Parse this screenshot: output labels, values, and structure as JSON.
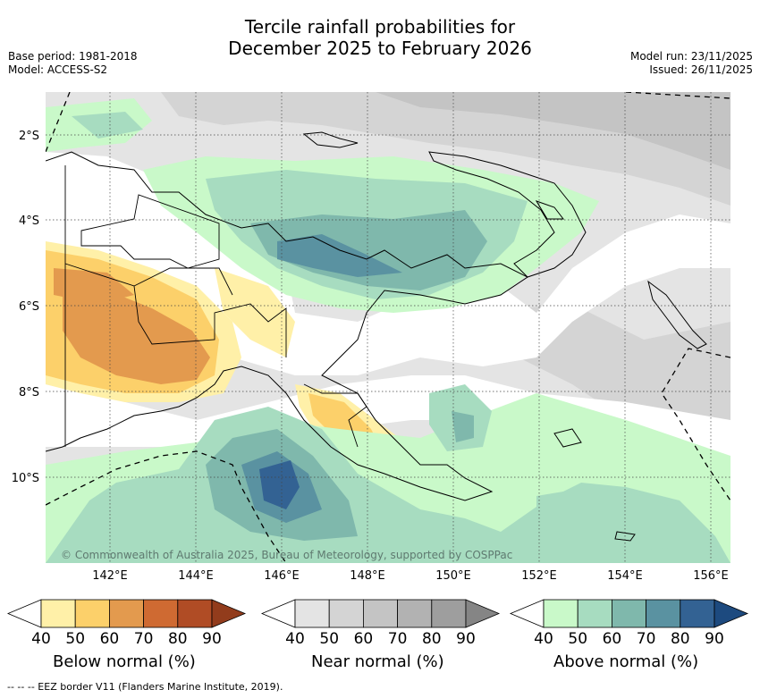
{
  "header": {
    "title_line1": "Tercile rainfall probabilities for",
    "title_line2": "December 2025 to February 2026",
    "base_period": "Base period: 1981-2018",
    "model": "Model: ACCESS-S2",
    "model_run": "Model run: 23/11/2025",
    "issued": "Issued: 26/11/2025"
  },
  "map": {
    "lat_labels": [
      "2°S",
      "4°S",
      "6°S",
      "8°S",
      "10°S"
    ],
    "lon_labels": [
      "142°E",
      "144°E",
      "146°E",
      "148°E",
      "150°E",
      "152°E",
      "154°E",
      "156°E"
    ],
    "copyright": "© Commonwealth of Australia 2025, Bureau of Meteorology, supported by COSPPac"
  },
  "legend": {
    "below": {
      "label": "Below normal (%)",
      "ticks": [
        "40",
        "50",
        "60",
        "70",
        "80",
        "90"
      ],
      "colors": [
        "#fff0a8",
        "#fcd06a",
        "#e39a4e",
        "#cf6a32",
        "#b04c25",
        "#923c1c"
      ]
    },
    "near": {
      "label": "Near normal (%)",
      "ticks": [
        "40",
        "50",
        "60",
        "70",
        "80",
        "90"
      ],
      "colors": [
        "#e4e4e4",
        "#d4d4d4",
        "#c4c4c4",
        "#b2b2b2",
        "#9e9e9e",
        "#858585"
      ]
    },
    "above": {
      "label": "Above normal (%)",
      "ticks": [
        "40",
        "50",
        "60",
        "70",
        "80",
        "90"
      ],
      "colors": [
        "#c9f9c9",
        "#a7dcc0",
        "#7fb8ac",
        "#5a92a1",
        "#336293",
        "#1d4a7f"
      ]
    }
  },
  "footnote": "--  --  -- EEZ border V11 (Flanders Marine Institute, 2019)."
}
